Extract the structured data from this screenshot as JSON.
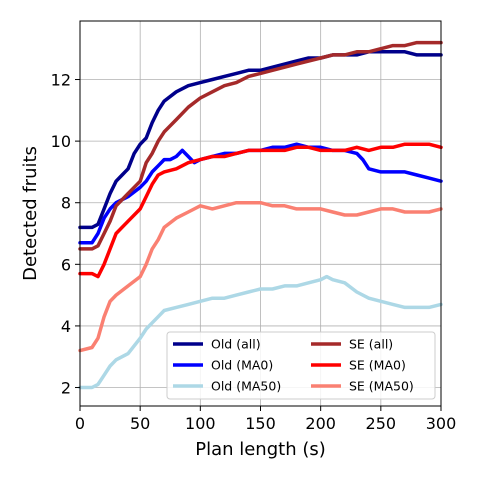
{
  "chart_data": {
    "type": "line",
    "title": "",
    "xlabel": "Plan length (s)",
    "ylabel": "Detected fruits",
    "xlim": [
      0,
      300
    ],
    "ylim": [
      1.4,
      13.9
    ],
    "xticks": [
      0,
      50,
      100,
      150,
      200,
      250,
      300
    ],
    "yticks": [
      2,
      4,
      6,
      8,
      10,
      12
    ],
    "grid": true,
    "legend": {
      "placement": "lower-right",
      "columns": 2
    },
    "series": [
      {
        "name": "Old (all)",
        "color": "#00008b",
        "points": [
          [
            0,
            7.2
          ],
          [
            10,
            7.2
          ],
          [
            15,
            7.3
          ],
          [
            20,
            7.8
          ],
          [
            25,
            8.3
          ],
          [
            30,
            8.7
          ],
          [
            35,
            8.9
          ],
          [
            40,
            9.1
          ],
          [
            45,
            9.6
          ],
          [
            50,
            9.9
          ],
          [
            55,
            10.1
          ],
          [
            60,
            10.6
          ],
          [
            65,
            11.0
          ],
          [
            70,
            11.3
          ],
          [
            80,
            11.6
          ],
          [
            90,
            11.8
          ],
          [
            100,
            11.9
          ],
          [
            110,
            12.0
          ],
          [
            120,
            12.1
          ],
          [
            130,
            12.2
          ],
          [
            140,
            12.3
          ],
          [
            150,
            12.3
          ],
          [
            160,
            12.4
          ],
          [
            170,
            12.5
          ],
          [
            180,
            12.6
          ],
          [
            190,
            12.7
          ],
          [
            200,
            12.7
          ],
          [
            210,
            12.8
          ],
          [
            220,
            12.8
          ],
          [
            230,
            12.8
          ],
          [
            240,
            12.9
          ],
          [
            250,
            12.9
          ],
          [
            260,
            12.9
          ],
          [
            270,
            12.9
          ],
          [
            280,
            12.8
          ],
          [
            290,
            12.8
          ],
          [
            300,
            12.8
          ]
        ]
      },
      {
        "name": "Old (MA0)",
        "color": "#0000ff",
        "points": [
          [
            0,
            6.7
          ],
          [
            10,
            6.7
          ],
          [
            15,
            7.0
          ],
          [
            20,
            7.5
          ],
          [
            25,
            7.8
          ],
          [
            30,
            8.0
          ],
          [
            40,
            8.2
          ],
          [
            50,
            8.5
          ],
          [
            55,
            8.7
          ],
          [
            60,
            9.0
          ],
          [
            65,
            9.2
          ],
          [
            70,
            9.4
          ],
          [
            75,
            9.4
          ],
          [
            80,
            9.5
          ],
          [
            85,
            9.7
          ],
          [
            90,
            9.5
          ],
          [
            95,
            9.3
          ],
          [
            100,
            9.4
          ],
          [
            110,
            9.5
          ],
          [
            120,
            9.6
          ],
          [
            130,
            9.6
          ],
          [
            140,
            9.7
          ],
          [
            150,
            9.7
          ],
          [
            160,
            9.8
          ],
          [
            170,
            9.8
          ],
          [
            180,
            9.9
          ],
          [
            190,
            9.8
          ],
          [
            200,
            9.8
          ],
          [
            210,
            9.7
          ],
          [
            220,
            9.7
          ],
          [
            230,
            9.6
          ],
          [
            235,
            9.4
          ],
          [
            240,
            9.1
          ],
          [
            250,
            9.0
          ],
          [
            260,
            9.0
          ],
          [
            270,
            9.0
          ],
          [
            280,
            8.9
          ],
          [
            290,
            8.8
          ],
          [
            300,
            8.7
          ]
        ]
      },
      {
        "name": "Old (MA50)",
        "color": "#add8e6",
        "points": [
          [
            0,
            2.0
          ],
          [
            10,
            2.0
          ],
          [
            15,
            2.1
          ],
          [
            20,
            2.4
          ],
          [
            25,
            2.7
          ],
          [
            30,
            2.9
          ],
          [
            40,
            3.1
          ],
          [
            50,
            3.6
          ],
          [
            55,
            3.9
          ],
          [
            60,
            4.1
          ],
          [
            65,
            4.3
          ],
          [
            70,
            4.5
          ],
          [
            80,
            4.6
          ],
          [
            90,
            4.7
          ],
          [
            100,
            4.8
          ],
          [
            110,
            4.9
          ],
          [
            120,
            4.9
          ],
          [
            130,
            5.0
          ],
          [
            140,
            5.1
          ],
          [
            150,
            5.2
          ],
          [
            160,
            5.2
          ],
          [
            170,
            5.3
          ],
          [
            180,
            5.3
          ],
          [
            190,
            5.4
          ],
          [
            200,
            5.5
          ],
          [
            205,
            5.6
          ],
          [
            210,
            5.5
          ],
          [
            220,
            5.4
          ],
          [
            230,
            5.1
          ],
          [
            240,
            4.9
          ],
          [
            250,
            4.8
          ],
          [
            260,
            4.7
          ],
          [
            270,
            4.6
          ],
          [
            280,
            4.6
          ],
          [
            290,
            4.6
          ],
          [
            300,
            4.7
          ]
        ]
      },
      {
        "name": "SE (all)",
        "color": "#a52a2a",
        "points": [
          [
            0,
            6.5
          ],
          [
            10,
            6.5
          ],
          [
            15,
            6.6
          ],
          [
            20,
            7.0
          ],
          [
            25,
            7.4
          ],
          [
            30,
            7.9
          ],
          [
            40,
            8.3
          ],
          [
            50,
            8.7
          ],
          [
            55,
            9.3
          ],
          [
            60,
            9.6
          ],
          [
            65,
            10.0
          ],
          [
            70,
            10.3
          ],
          [
            80,
            10.7
          ],
          [
            90,
            11.1
          ],
          [
            100,
            11.4
          ],
          [
            110,
            11.6
          ],
          [
            120,
            11.8
          ],
          [
            130,
            11.9
          ],
          [
            140,
            12.1
          ],
          [
            150,
            12.2
          ],
          [
            160,
            12.3
          ],
          [
            170,
            12.4
          ],
          [
            180,
            12.5
          ],
          [
            190,
            12.6
          ],
          [
            200,
            12.7
          ],
          [
            210,
            12.8
          ],
          [
            220,
            12.8
          ],
          [
            230,
            12.9
          ],
          [
            240,
            12.9
          ],
          [
            250,
            13.0
          ],
          [
            260,
            13.1
          ],
          [
            270,
            13.1
          ],
          [
            280,
            13.2
          ],
          [
            290,
            13.2
          ],
          [
            300,
            13.2
          ]
        ]
      },
      {
        "name": "SE (MA0)",
        "color": "#ff0000",
        "points": [
          [
            0,
            5.7
          ],
          [
            10,
            5.7
          ],
          [
            15,
            5.6
          ],
          [
            20,
            6.0
          ],
          [
            25,
            6.5
          ],
          [
            30,
            7.0
          ],
          [
            40,
            7.4
          ],
          [
            50,
            7.8
          ],
          [
            55,
            8.2
          ],
          [
            60,
            8.6
          ],
          [
            65,
            8.9
          ],
          [
            70,
            9.0
          ],
          [
            80,
            9.1
          ],
          [
            90,
            9.3
          ],
          [
            100,
            9.4
          ],
          [
            110,
            9.5
          ],
          [
            120,
            9.5
          ],
          [
            130,
            9.6
          ],
          [
            140,
            9.7
          ],
          [
            150,
            9.7
          ],
          [
            160,
            9.7
          ],
          [
            170,
            9.7
          ],
          [
            180,
            9.8
          ],
          [
            190,
            9.8
          ],
          [
            200,
            9.7
          ],
          [
            210,
            9.7
          ],
          [
            220,
            9.7
          ],
          [
            230,
            9.8
          ],
          [
            240,
            9.7
          ],
          [
            250,
            9.8
          ],
          [
            260,
            9.8
          ],
          [
            270,
            9.9
          ],
          [
            280,
            9.9
          ],
          [
            290,
            9.9
          ],
          [
            300,
            9.8
          ]
        ]
      },
      {
        "name": "SE (MA50)",
        "color": "#fa8072",
        "points": [
          [
            0,
            3.2
          ],
          [
            10,
            3.3
          ],
          [
            15,
            3.6
          ],
          [
            20,
            4.3
          ],
          [
            25,
            4.8
          ],
          [
            30,
            5.0
          ],
          [
            40,
            5.3
          ],
          [
            50,
            5.6
          ],
          [
            55,
            6.0
          ],
          [
            60,
            6.5
          ],
          [
            65,
            6.8
          ],
          [
            70,
            7.2
          ],
          [
            80,
            7.5
          ],
          [
            90,
            7.7
          ],
          [
            100,
            7.9
          ],
          [
            110,
            7.8
          ],
          [
            120,
            7.9
          ],
          [
            130,
            8.0
          ],
          [
            140,
            8.0
          ],
          [
            150,
            8.0
          ],
          [
            160,
            7.9
          ],
          [
            170,
            7.9
          ],
          [
            180,
            7.8
          ],
          [
            190,
            7.8
          ],
          [
            200,
            7.8
          ],
          [
            210,
            7.7
          ],
          [
            220,
            7.6
          ],
          [
            230,
            7.6
          ],
          [
            240,
            7.7
          ],
          [
            250,
            7.8
          ],
          [
            260,
            7.8
          ],
          [
            270,
            7.7
          ],
          [
            280,
            7.7
          ],
          [
            290,
            7.7
          ],
          [
            300,
            7.8
          ]
        ]
      }
    ]
  }
}
